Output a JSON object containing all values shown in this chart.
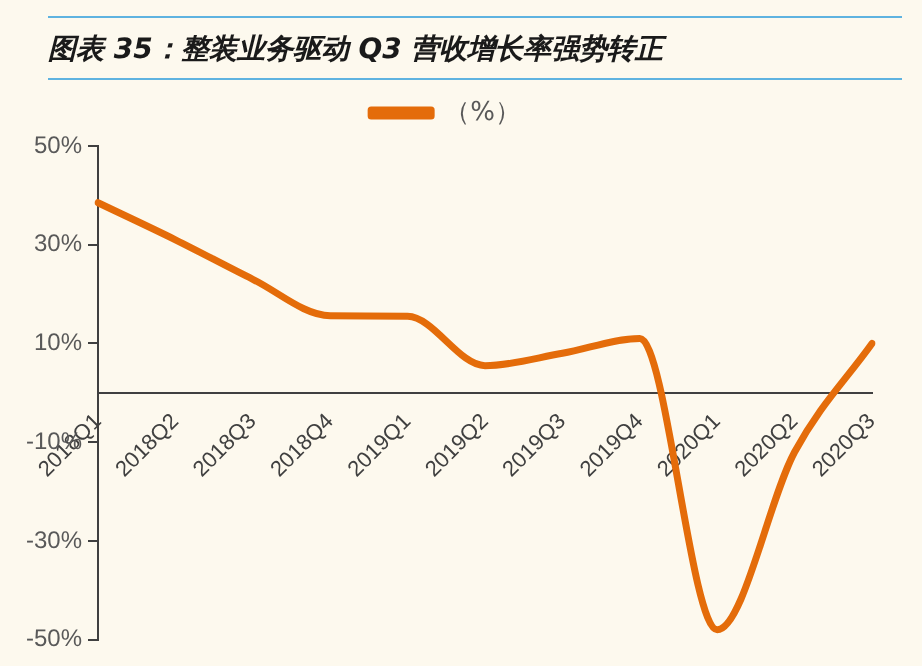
{
  "chart_data": {
    "type": "line",
    "title": "图表 35：整装业务驱动 Q3 营收增长率强势转正",
    "categories": [
      "2018Q1",
      "2018Q2",
      "2018Q3",
      "2018Q4",
      "2019Q1",
      "2019Q2",
      "2019Q3",
      "2019Q4",
      "2020Q1",
      "2020Q2",
      "2020Q3"
    ],
    "series": [
      {
        "name": "（%）",
        "color": "#e46c0a",
        "values": [
          38.5,
          31,
          23,
          15.6,
          15.5,
          5.5,
          8,
          11,
          -48,
          -12,
          10
        ]
      }
    ],
    "ylim": [
      -50,
      50
    ],
    "yticks": [
      {
        "value": -50,
        "label": "-50%"
      },
      {
        "value": -30,
        "label": "-30%"
      },
      {
        "value": -10,
        "label": "-10%"
      },
      {
        "value": 10,
        "label": "10%"
      },
      {
        "value": 30,
        "label": "30%"
      },
      {
        "value": 50,
        "label": "50%"
      }
    ],
    "grid": false,
    "legend": "top",
    "marker": "none",
    "line_style": "solid"
  }
}
